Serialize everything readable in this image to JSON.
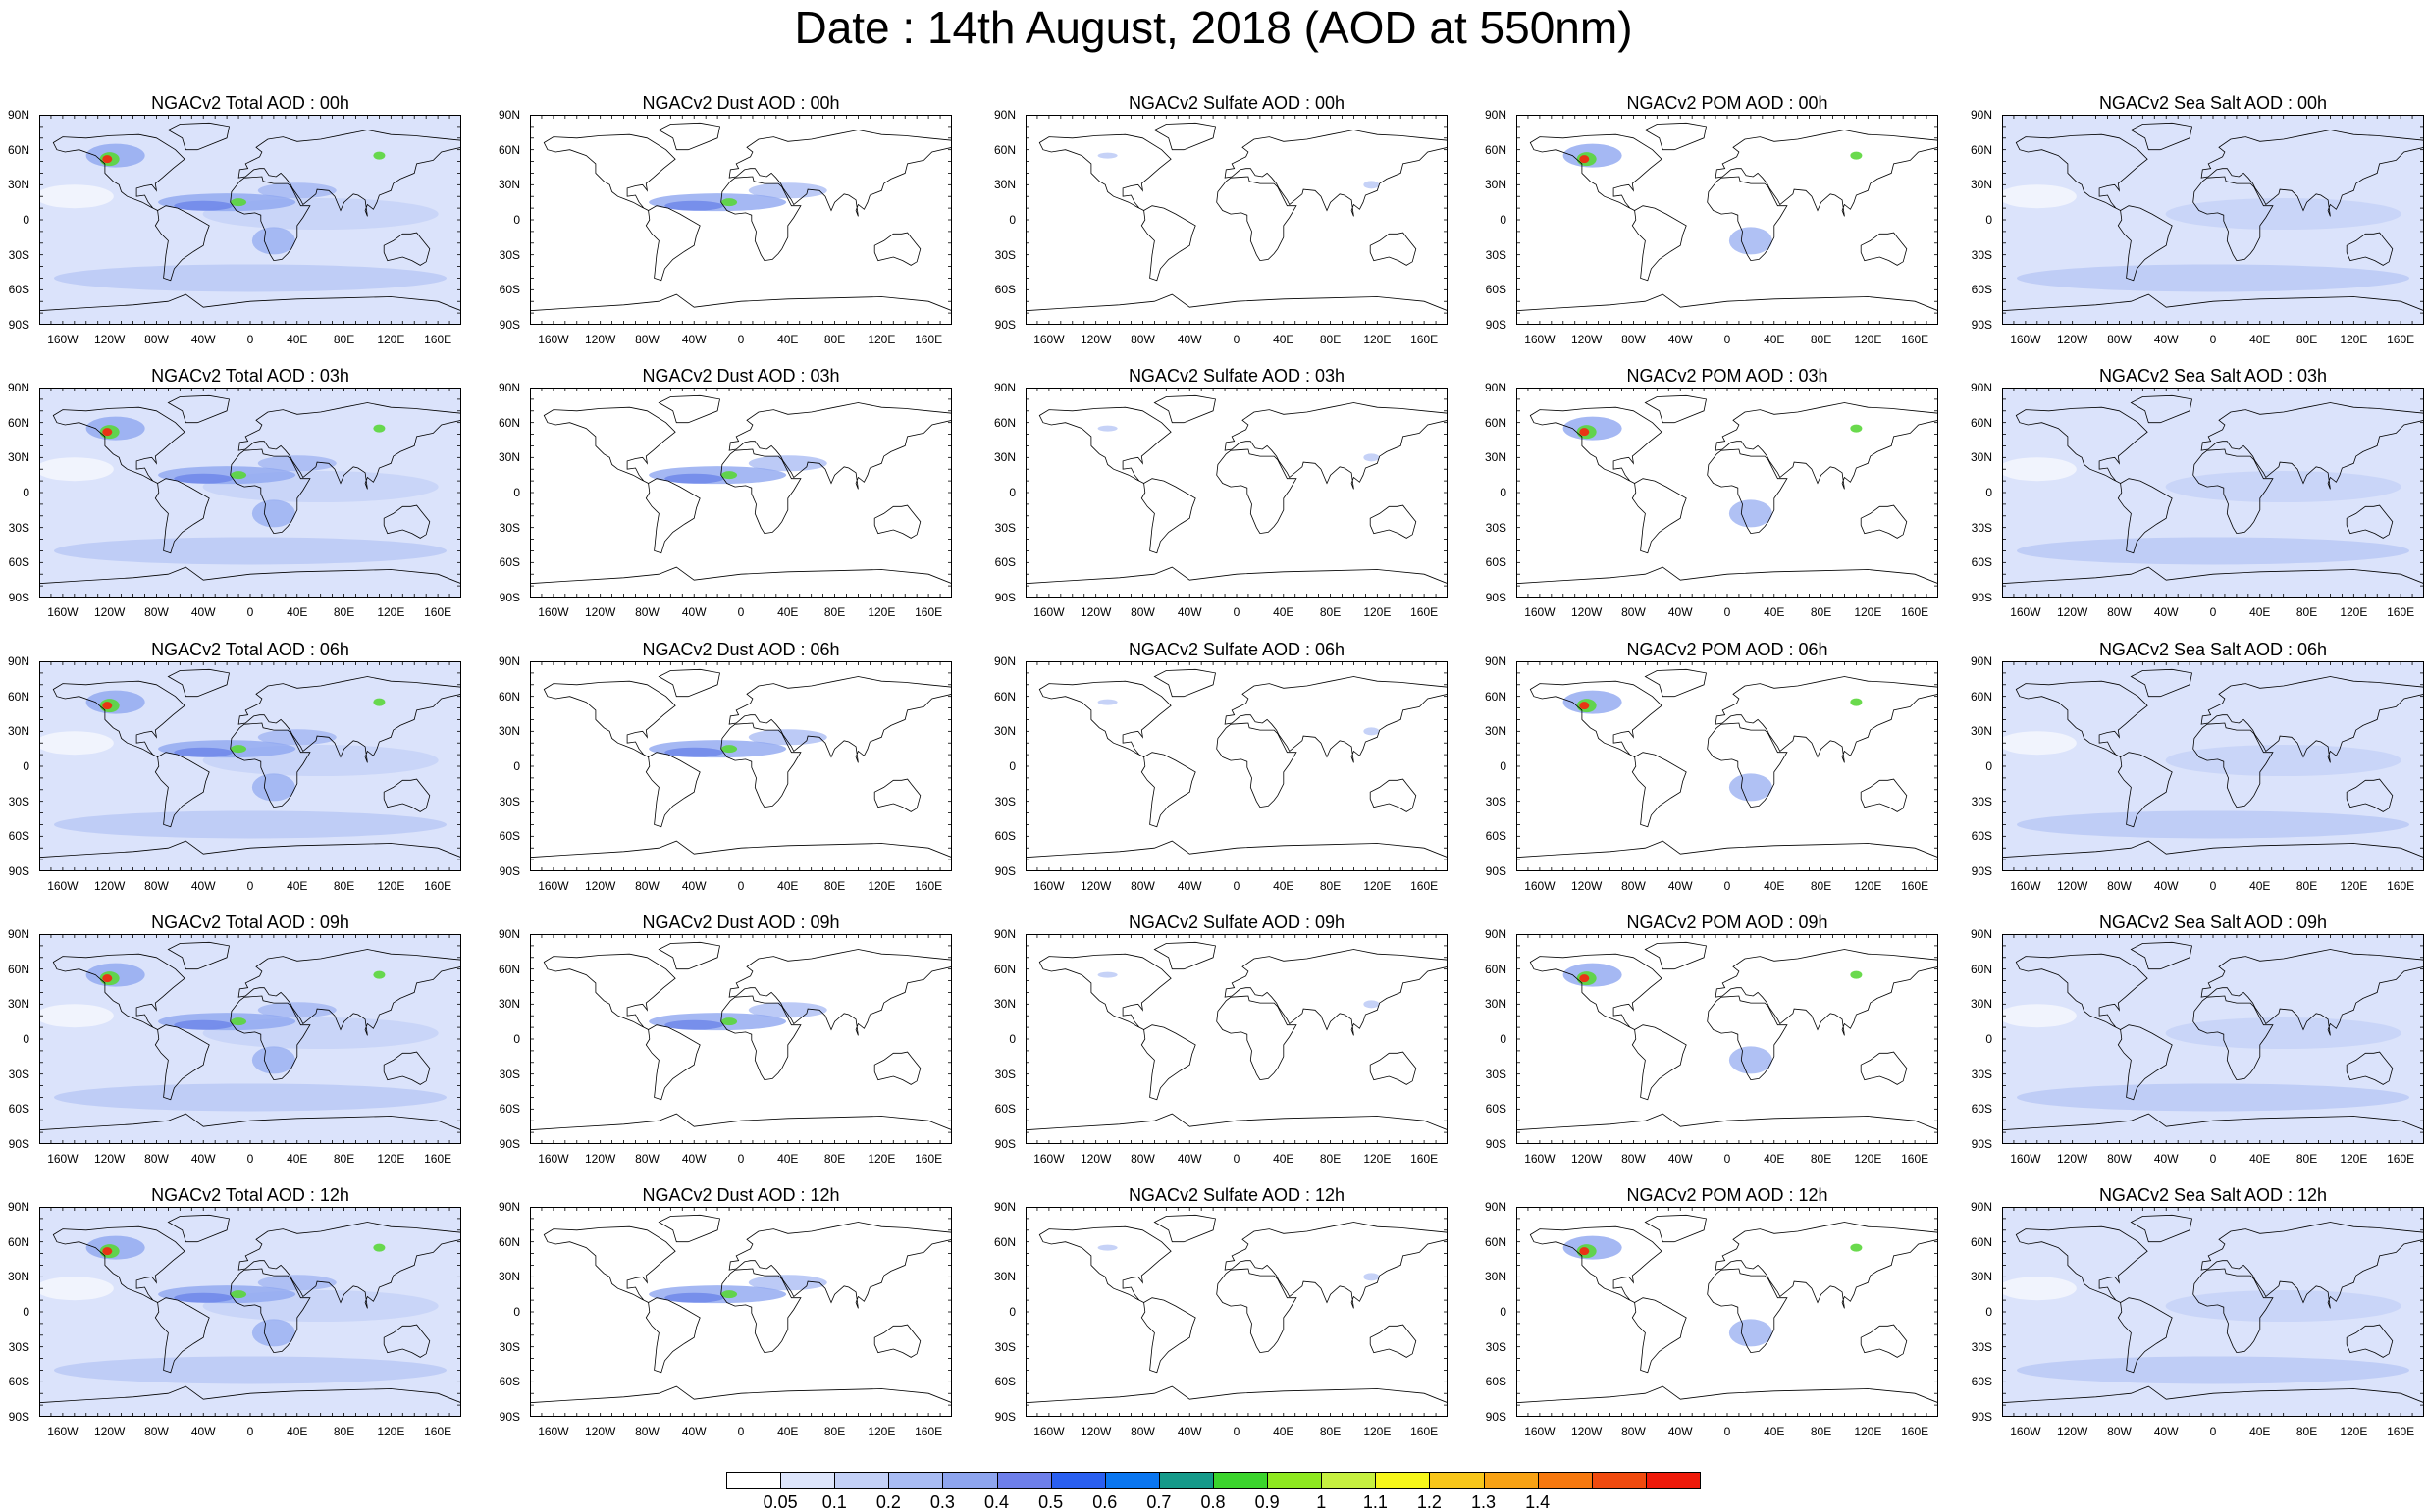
{
  "title": "Date : 14th August, 2018 (AOD at 550nm)",
  "colors": {
    "ocean_haze": "#dbe3fb",
    "land": "#ffffff",
    "light_blue": "#b8c7f5",
    "mid_blue": "#8fa6f0",
    "dark_blue": "#6b84e8",
    "green": "#5ad63a",
    "yellow": "#f3f020",
    "red": "#f02a12",
    "coast": "#000000"
  },
  "map_axes": {
    "lat_labels": [
      "90N",
      "60N",
      "30N",
      "0",
      "30S",
      "60S",
      "90S"
    ],
    "lon_labels": [
      "160W",
      "120W",
      "80W",
      "40W",
      "0",
      "40E",
      "80E",
      "120E",
      "160E"
    ]
  },
  "columns": [
    "Total",
    "Dust",
    "Sulfate",
    "POM",
    "Sea Salt"
  ],
  "panel_titles": [
    [
      "NGACv2 Total AOD : 00h",
      "NGACv2 Dust AOD : 00h",
      "NGACv2 Sulfate AOD : 00h",
      "NGACv2 POM AOD : 00h",
      "NGACv2 Sea Salt AOD : 00h"
    ],
    [
      "NGACv2 Total AOD : 03h",
      "NGACv2 Dust AOD : 03h",
      "NGACv2 Sulfate AOD : 03h",
      "NGACv2 POM AOD : 03h",
      "NGACv2 Sea Salt AOD : 03h"
    ],
    [
      "NGACv2 Total AOD : 06h",
      "NGACv2 Dust AOD : 06h",
      "NGACv2 Sulfate AOD : 06h",
      "NGACv2 POM AOD : 06h",
      "NGACv2 Sea Salt AOD : 06h"
    ],
    [
      "NGACv2 Total AOD : 09h",
      "NGACv2 Dust AOD : 09h",
      "NGACv2 Sulfate AOD : 09h",
      "NGACv2 POM AOD : 09h",
      "NGACv2 Sea Salt  AOD : 09h"
    ],
    [
      "NGACv2 Total AOD  : 12h",
      "NGACv2 Dust AOD : 12h",
      "NGACv2 Sulfate AOD : 12h",
      "NGACv2 POM  AOD : 12h",
      "NGACv2 Sea Salt AOD : 12h"
    ]
  ],
  "colorbar": {
    "labels": [
      "0.05",
      "0.1",
      "0.2",
      "0.3",
      "0.4",
      "0.5",
      "0.6",
      "0.7",
      "0.8",
      "0.9",
      "1",
      "1.1",
      "1.2",
      "1.3",
      "1.4"
    ],
    "colors": [
      "#ffffff",
      "#dde5fb",
      "#c4d1f7",
      "#a9bcf3",
      "#8ea5ef",
      "#6e7fea",
      "#2a5ff0",
      "#0a76f0",
      "#159a8a",
      "#3bd42c",
      "#8ee820",
      "#c6f040",
      "#f6f61a",
      "#f8c61a",
      "#f8a214",
      "#f6780e",
      "#f04a0e",
      "#ee1a0a"
    ]
  }
}
